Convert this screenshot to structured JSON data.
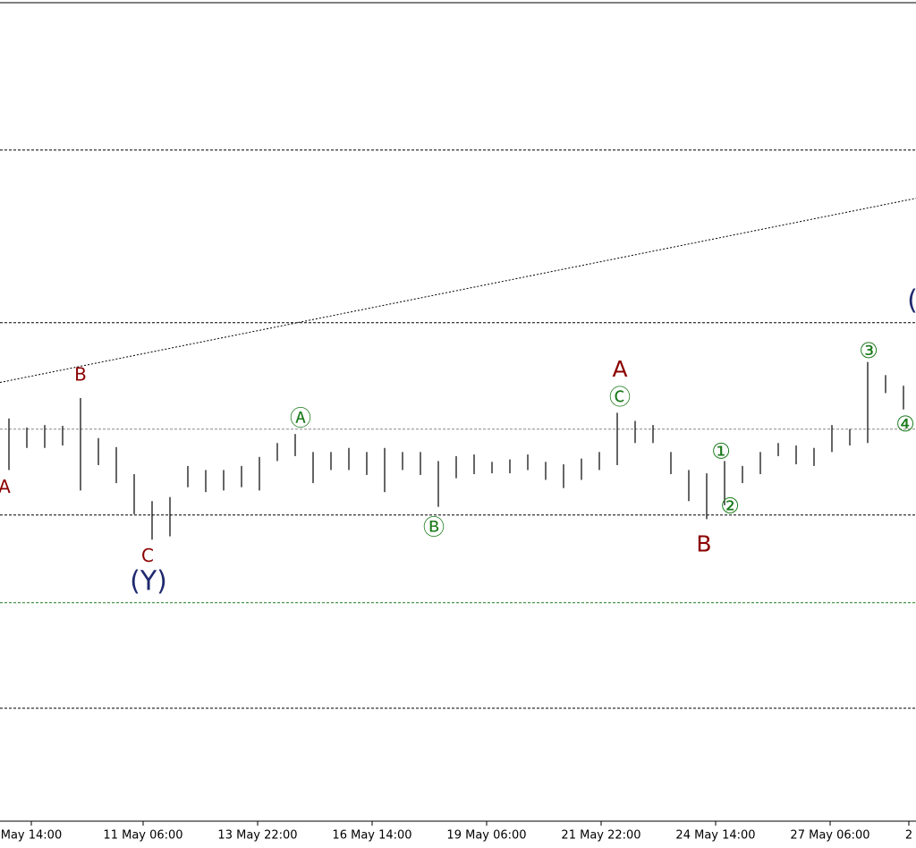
{
  "chart_data": {
    "type": "ohlc",
    "color": "#000000",
    "x": [
      2.5,
      7.5,
      12.5,
      17.5,
      22.5,
      27.5,
      32.5,
      37.5,
      42.5,
      47.5,
      52.5,
      57.5,
      62.5,
      67.5,
      72.5,
      77.5,
      82.5,
      87.5,
      92.5,
      97.5,
      102.5,
      107.5,
      112.5,
      117.5,
      122.5,
      127.5,
      132.5,
      137.5,
      142.5,
      147.5,
      152.5,
      157.5,
      162.5,
      167.5,
      172.5,
      177.5,
      182.5,
      187.5,
      192.5,
      197.5,
      202.5,
      207.5,
      212.5,
      217.5,
      222.5,
      227.5,
      232.5,
      237.5,
      242.5,
      247.5,
      252.5
    ],
    "high": [
      49.2,
      48.1,
      48.4,
      48.3,
      51.7,
      46.8,
      45.7,
      42.4,
      39.1,
      39.6,
      43.4,
      42.9,
      42.9,
      43.4,
      44.5,
      46.2,
      47.3,
      45.1,
      45.1,
      45.6,
      45.1,
      45.6,
      45.1,
      45.1,
      44.0,
      44.6,
      44.8,
      43.9,
      44.2,
      44.8,
      43.9,
      43.6,
      44.3,
      45.1,
      49.9,
      48.9,
      48.4,
      45.1,
      42.9,
      42.5,
      44.0,
      43.4,
      45.1,
      46.2,
      45.9,
      45.6,
      48.4,
      47.9,
      56.1,
      54.5,
      53.2
    ],
    "low": [
      42.9,
      45.6,
      45.6,
      45.9,
      40.4,
      43.5,
      41.3,
      37.5,
      34.4,
      34.8,
      40.8,
      40.2,
      40.4,
      40.8,
      40.4,
      44.0,
      44.6,
      41.3,
      42.9,
      42.9,
      42.3,
      40.2,
      42.9,
      42.3,
      38.4,
      41.9,
      42.4,
      42.5,
      42.5,
      42.9,
      41.7,
      40.7,
      41.7,
      42.9,
      43.5,
      46.2,
      46.2,
      42.4,
      39.1,
      36.9,
      38.6,
      41.3,
      42.4,
      44.6,
      43.6,
      43.4,
      45.1,
      45.9,
      46.2,
      52.3,
      50.3
    ],
    "xlim": [
      0,
      256
    ],
    "ylim": [
      0,
      100
    ],
    "xticks": [
      {
        "value": 8.75,
        "label": "May 14:00"
      },
      {
        "value": 40,
        "label": "11 May 06:00"
      },
      {
        "value": 72,
        "label": "13 May 22:00"
      },
      {
        "value": 104,
        "label": "16 May 14:00"
      },
      {
        "value": 136,
        "label": "19 May 06:00"
      },
      {
        "value": 168,
        "label": "21 May 22:00"
      },
      {
        "value": 200,
        "label": "24 May 14:00"
      },
      {
        "value": 232,
        "label": "27 May 06:00"
      },
      {
        "value": 254,
        "label": "2"
      }
    ],
    "levels": [
      {
        "value": 82.0,
        "color": "#000000"
      },
      {
        "value": 60.9,
        "color": "#000000"
      },
      {
        "value": 47.9,
        "color": "#888888"
      },
      {
        "value": 37.4,
        "color": "#000000"
      },
      {
        "value": 26.7,
        "color": "#1a7a1a"
      },
      {
        "value": 13.8,
        "color": "#000000"
      }
    ],
    "trendline": {
      "x": [
        0,
        256
      ],
      "y": [
        53.6,
        76.1
      ],
      "color": "#000000"
    },
    "annotations": [
      {
        "text": "A",
        "x": 1.25,
        "y": 40.7,
        "color": "#8b0000"
      },
      {
        "text": "B",
        "x": 22.5,
        "y": 54.4,
        "color": "#8b0000"
      },
      {
        "text": "C",
        "x": 41.25,
        "y": 32.3,
        "color": "#8b0000"
      },
      {
        "text": "(Y)",
        "x": 41.5,
        "y": 29.2,
        "color": "#1f2a6e"
      },
      {
        "text": "Ⓐ",
        "x": 84,
        "y": 49.1,
        "color": "#1a7a1a"
      },
      {
        "text": "Ⓑ",
        "x": 121.25,
        "y": 35.8,
        "color": "#1a7a1a"
      },
      {
        "text": "A",
        "x": 173.25,
        "y": 55.1,
        "color": "#8b0000"
      },
      {
        "text": "Ⓒ",
        "x": 173.25,
        "y": 51.7,
        "color": "#1a7a1a"
      },
      {
        "text": "B",
        "x": 196.75,
        "y": 33.7,
        "color": "#8b0000"
      },
      {
        "text": "①",
        "x": 201.5,
        "y": 45.1,
        "color": "#1a7a1a"
      },
      {
        "text": "②",
        "x": 204,
        "y": 38.4,
        "color": "#1a7a1a"
      },
      {
        "text": "③",
        "x": 242.75,
        "y": 57.4,
        "color": "#1a7a1a"
      },
      {
        "text": "④",
        "x": 253,
        "y": 48.4,
        "color": "#1a7a1a"
      },
      {
        "text": "(",
        "x": 255,
        "y": 63.5,
        "color": "#1f2a6e"
      }
    ]
  }
}
